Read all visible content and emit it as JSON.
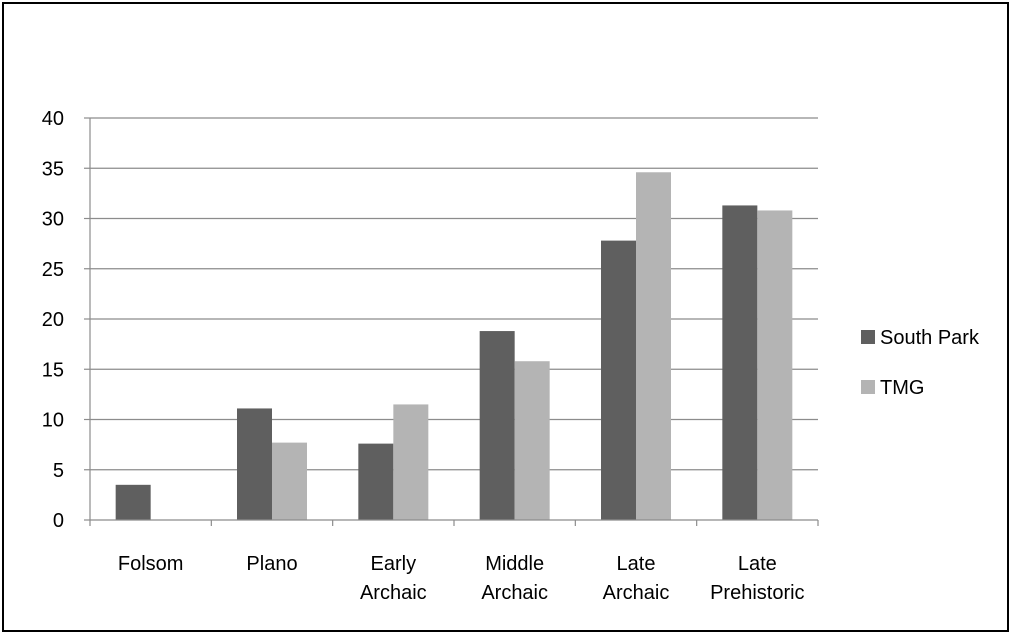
{
  "chart_data": {
    "type": "bar",
    "title": "",
    "xlabel": "",
    "ylabel": "",
    "categories": [
      [
        "Folsom"
      ],
      [
        "Plano"
      ],
      [
        "Early",
        "Archaic"
      ],
      [
        "Middle",
        "Archaic"
      ],
      [
        "Late",
        "Archaic"
      ],
      [
        "Late",
        "Prehistoric"
      ]
    ],
    "series": [
      {
        "name": "South Park",
        "color": "#5f5f5f",
        "values": [
          3.5,
          11.1,
          7.6,
          18.8,
          27.8,
          31.3
        ]
      },
      {
        "name": "TMG",
        "color": "#b4b4b4",
        "values": [
          0,
          7.7,
          11.5,
          15.8,
          34.6,
          30.8
        ]
      }
    ],
    "ylim": [
      0,
      40
    ],
    "yticks": [
      0,
      5,
      10,
      15,
      20,
      25,
      30,
      35,
      40
    ],
    "grid": true,
    "legend": "right"
  }
}
